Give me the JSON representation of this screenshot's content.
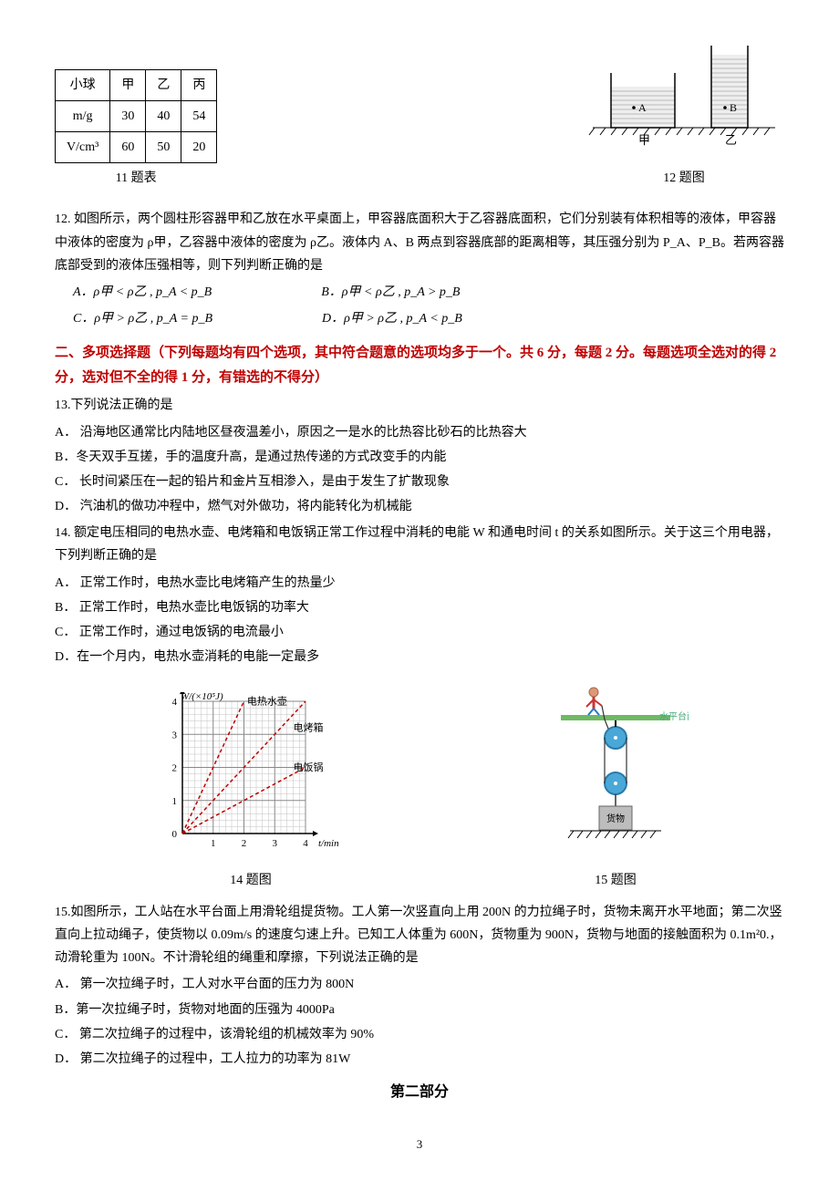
{
  "table11": {
    "caption": "11 题表",
    "headers": [
      "小球",
      "甲",
      "乙",
      "丙"
    ],
    "rows": [
      [
        "m/g",
        "30",
        "40",
        "54"
      ],
      [
        "V/cm³",
        "60",
        "50",
        "20"
      ]
    ]
  },
  "fig12": {
    "caption": "12 题图",
    "labels": {
      "A": "A",
      "B": "B",
      "jia": "甲",
      "yi": "乙"
    },
    "colors": {
      "liquid": "#e8e8e8",
      "pattern": "#bfbfbf",
      "line": "#000"
    }
  },
  "q12": {
    "stem": "12. 如图所示，两个圆柱形容器甲和乙放在水平桌面上，甲容器底面积大于乙容器底面积，它们分别装有体积相等的液体，甲容器中液体的密度为 ρ甲，乙容器中液体的密度为 ρ乙。液体内 A、B 两点到容器底部的距离相等，其压强分别为 P_A、P_B。若两容器底部受到的液体压强相等，则下列判断正确的是",
    "options": {
      "A": "A．ρ甲 < ρ乙 ,  p_A < p_B",
      "B": "B．ρ甲 < ρ乙 ,  p_A > p_B",
      "C": "C．ρ甲 > ρ乙 ,  p_A = p_B",
      "D": "D．ρ甲 > ρ乙 ,  p_A < p_B"
    }
  },
  "section2_head": "二、多项选择题（下列每题均有四个选项，其中符合题意的选项均多于一个。共 6 分，每题 2 分。每题选项全选对的得 2 分，选对但不全的得 1 分，有错选的不得分）",
  "q13": {
    "stem": "13.下列说法正确的是",
    "A": "A．   沿海地区通常比内陆地区昼夜温差小，原因之一是水的比热容比砂石的比热容大",
    "B": "B．冬天双手互搓，手的温度升高，是通过热传递的方式改变手的内能",
    "C": "C．   长时间紧压在一起的铅片和金片互相渗入，是由于发生了扩散现象",
    "D": "D．   汽油机的做功冲程中，燃气对外做功，将内能转化为机械能"
  },
  "q14": {
    "stem": "14. 额定电压相同的电热水壶、电烤箱和电饭锅正常工作过程中消耗的电能 W 和通电时间 t 的关系如图所示。关于这三个用电器，下列判断正确的是",
    "A": "A．   正常工作时，电热水壶比电烤箱产生的热量少",
    "B": "B．   正常工作时，电热水壶比电饭锅的功率大",
    "C": "C．   正常工作时，通过电饭锅的电流最小",
    "D": "D．在一个月内，电热水壶消耗的电能一定最多"
  },
  "fig14": {
    "caption": "14 题图",
    "xlabel": "t/min",
    "ylabel": "W/(×10⁵J)",
    "xlim": [
      0,
      4
    ],
    "ylim": [
      0,
      4
    ],
    "series": [
      {
        "name": "电热水壶",
        "points": [
          [
            0,
            0
          ],
          [
            2,
            4
          ]
        ],
        "color": "#c00000",
        "dash": "4,3"
      },
      {
        "name": "电烤箱",
        "points": [
          [
            0,
            0
          ],
          [
            4,
            4
          ]
        ],
        "color": "#c00000",
        "dash": "4,3"
      },
      {
        "name": "电饭锅",
        "points": [
          [
            0,
            0
          ],
          [
            4,
            2
          ]
        ],
        "color": "#c00000",
        "dash": "4,3"
      }
    ],
    "label_pos": {
      "电热水壶": [
        2.1,
        3.9
      ],
      "电烤箱": [
        3.6,
        3.1
      ],
      "电饭锅": [
        3.6,
        1.9
      ]
    },
    "grid_color": "#c0c0c0",
    "background": "#ffffff"
  },
  "fig15": {
    "caption": "15 题图",
    "labels": {
      "platform": "水平台面",
      "cargo": "货物"
    },
    "colors": {
      "pulley": "#4aa8d8",
      "platform": "#6fb965",
      "rope": "#333",
      "cargo": "#999"
    }
  },
  "q15": {
    "stem": "15.如图所示，工人站在水平台面上用滑轮组提货物。工人第一次竖直向上用 200N 的力拉绳子时，货物未离开水平地面；第二次竖直向上拉动绳子，使货物以 0.09m/s 的速度匀速上升。已知工人体重为 600N，货物重为 900N，货物与地面的接触面积为 0.1m²0.，动滑轮重为 100N。不计滑轮组的绳重和摩擦，下列说法正确的是",
    "A": "A．   第一次拉绳子时，工人对水平台面的压力为 800N",
    "B": "B．第一次拉绳子时，货物对地面的压强为 4000Pa",
    "C": "C．   第二次拉绳子的过程中，该滑轮组的机械效率为 90%",
    "D": "D．   第二次拉绳子的过程中，工人拉力的功率为 81W"
  },
  "part2_title": "第二部分",
  "page_num": "3"
}
